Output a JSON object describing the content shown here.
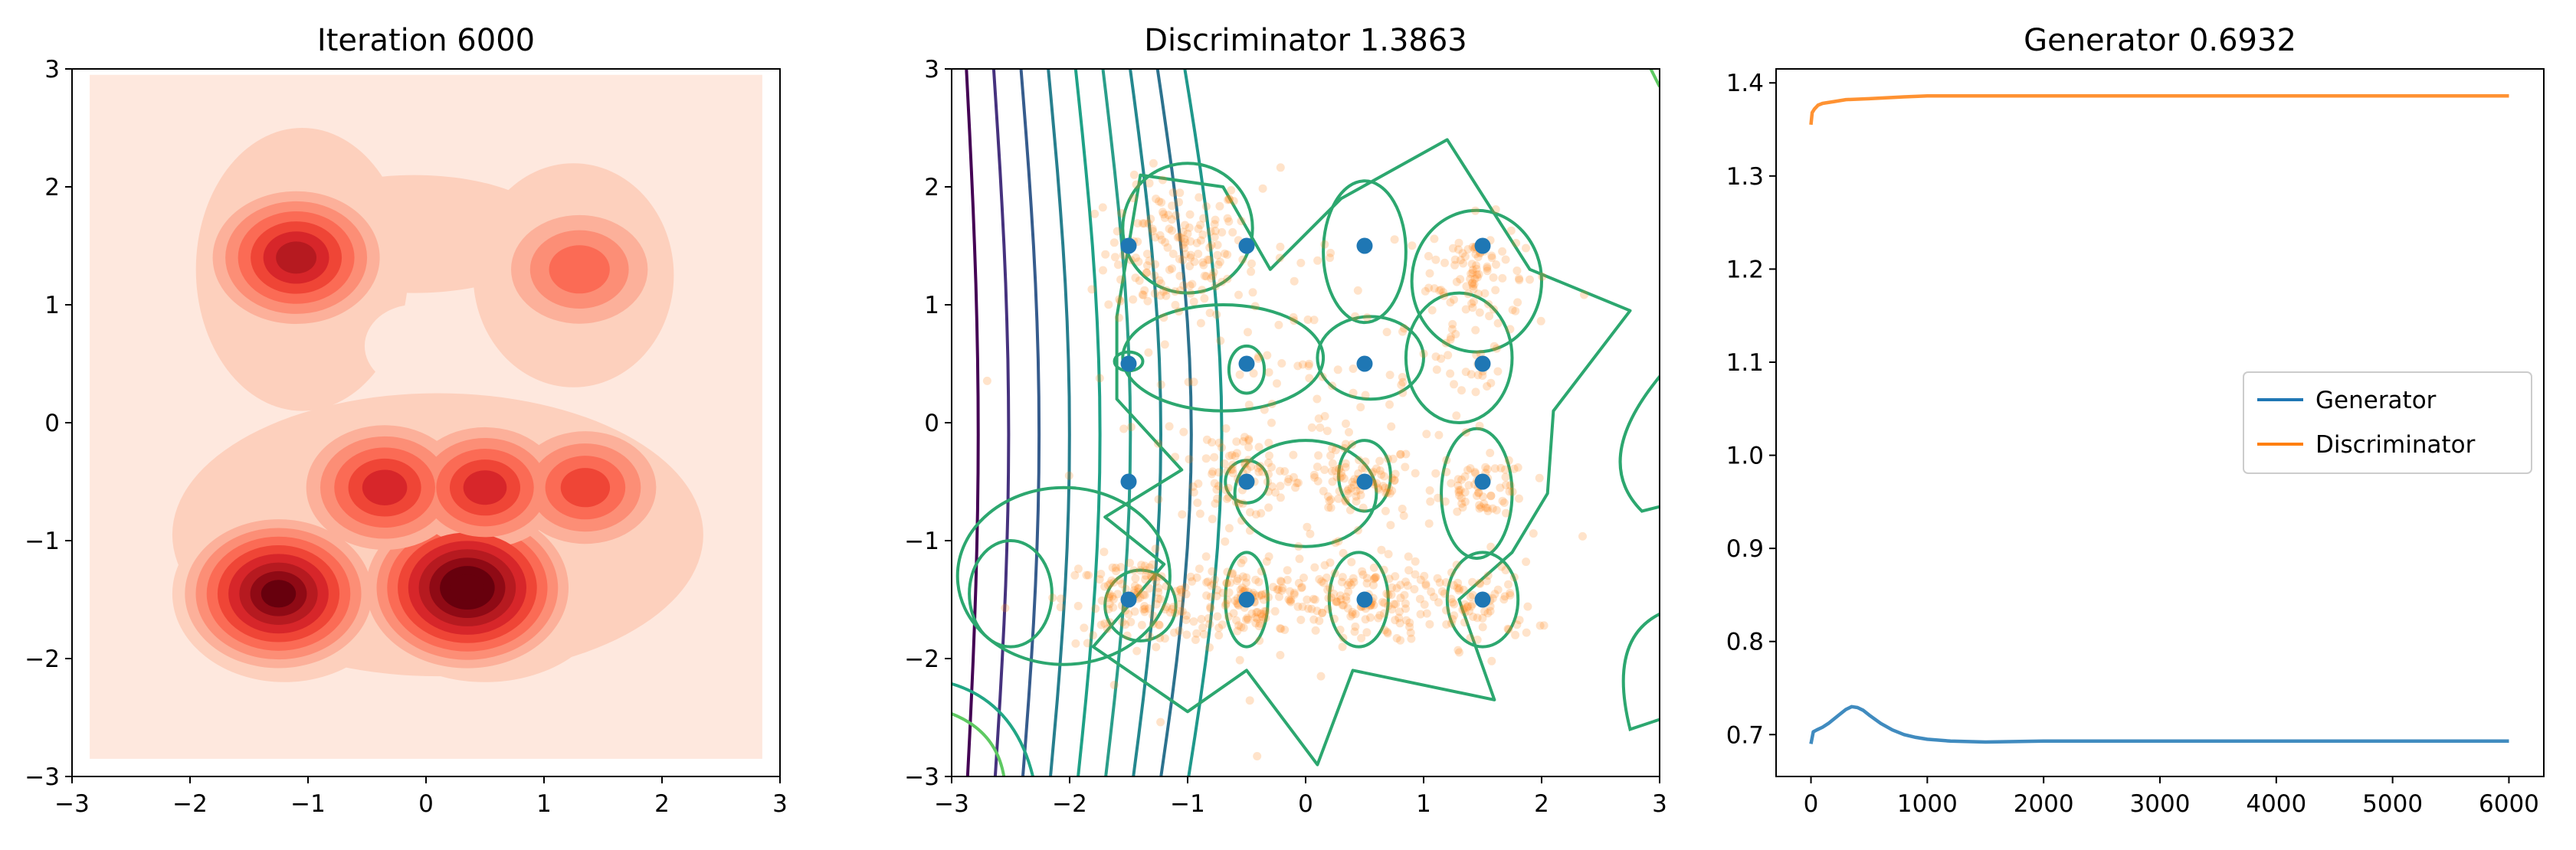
{
  "chart_data": [
    {
      "type": "heatmap",
      "title": "Iteration 6000",
      "xlim": [
        -3,
        3
      ],
      "ylim": [
        -3,
        3
      ],
      "x_ticks": [
        -3,
        -2,
        -1,
        0,
        1,
        2,
        3
      ],
      "y_ticks": [
        -3,
        -2,
        -1,
        0,
        1,
        2,
        3
      ],
      "grid": false,
      "colormap": "Reds",
      "density_peaks": [
        {
          "x": -1.1,
          "y": 1.4,
          "level": 0.65
        },
        {
          "x": 1.3,
          "y": 1.3,
          "level": 0.35
        },
        {
          "x": -0.35,
          "y": -0.55,
          "level": 0.55
        },
        {
          "x": 0.5,
          "y": -0.55,
          "level": 0.5
        },
        {
          "x": 1.35,
          "y": -0.55,
          "level": 0.4
        },
        {
          "x": -1.25,
          "y": -1.45,
          "level": 0.85
        },
        {
          "x": 0.35,
          "y": -1.4,
          "level": 1.0
        }
      ]
    },
    {
      "type": "scatter",
      "title": "Discriminator 1.3863",
      "xlim": [
        -3,
        3
      ],
      "ylim": [
        -3,
        3
      ],
      "x_ticks": [
        -3,
        -2,
        -1,
        0,
        1,
        2,
        3
      ],
      "y_ticks": [
        -3,
        -2,
        -1,
        0,
        1,
        2,
        3
      ],
      "grid": false,
      "contour_colormap": "viridis",
      "series": [
        {
          "role": "real",
          "color": "#1f77b4",
          "points": [
            [
              -1.5,
              1.5
            ],
            [
              -0.5,
              1.5
            ],
            [
              0.5,
              1.5
            ],
            [
              1.5,
              1.5
            ],
            [
              -1.5,
              0.5
            ],
            [
              -0.5,
              0.5
            ],
            [
              0.5,
              0.5
            ],
            [
              1.5,
              0.5
            ],
            [
              -1.5,
              -0.5
            ],
            [
              -0.5,
              -0.5
            ],
            [
              0.5,
              -0.5
            ],
            [
              1.5,
              -0.5
            ],
            [
              -1.5,
              -1.5
            ],
            [
              -0.5,
              -1.5
            ],
            [
              0.5,
              -1.5
            ],
            [
              1.5,
              -1.5
            ]
          ]
        },
        {
          "role": "generated",
          "color": "#ff7f0e",
          "clusters": [
            {
              "x": -1.1,
              "y": 1.45,
              "sx": 0.3,
              "sy": 0.3,
              "n": 150
            },
            {
              "x": 1.45,
              "y": 1.3,
              "sx": 0.2,
              "sy": 0.22,
              "n": 80
            },
            {
              "x": 1.4,
              "y": 0.7,
              "sx": 0.2,
              "sy": 0.3,
              "n": 40
            },
            {
              "x": -0.55,
              "y": -0.5,
              "sx": 0.25,
              "sy": 0.15,
              "n": 70
            },
            {
              "x": 0.45,
              "y": -0.5,
              "sx": 0.25,
              "sy": 0.15,
              "n": 80
            },
            {
              "x": 1.5,
              "y": -0.55,
              "sx": 0.2,
              "sy": 0.12,
              "n": 70
            },
            {
              "x": -1.45,
              "y": -1.5,
              "sx": 0.3,
              "sy": 0.18,
              "n": 120
            },
            {
              "x": -0.5,
              "y": -1.5,
              "sx": 0.3,
              "sy": 0.18,
              "n": 130
            },
            {
              "x": 0.45,
              "y": -1.5,
              "sx": 0.3,
              "sy": 0.18,
              "n": 130
            },
            {
              "x": 1.45,
              "y": -1.55,
              "sx": 0.25,
              "sy": 0.18,
              "n": 80
            },
            {
              "x": 0.0,
              "y": 0.0,
              "sx": 0.9,
              "sy": 0.9,
              "n": 180
            }
          ]
        }
      ]
    },
    {
      "type": "line",
      "title": "Generator 0.6932",
      "xlim": [
        -300,
        6300
      ],
      "ylim": [
        0.655,
        1.415
      ],
      "x_ticks": [
        0,
        1000,
        2000,
        3000,
        4000,
        5000,
        6000
      ],
      "y_ticks": [
        0.7,
        0.8,
        0.9,
        1.0,
        1.1,
        1.2,
        1.3,
        1.4
      ],
      "grid": false,
      "legend_position": "center-right",
      "series": [
        {
          "name": "Generator",
          "color": "#1f77b4",
          "x": [
            0,
            20,
            50,
            100,
            150,
            200,
            250,
            300,
            350,
            400,
            450,
            500,
            600,
            700,
            800,
            900,
            1000,
            1200,
            1500,
            2000,
            3000,
            4000,
            5000,
            6000
          ],
          "y": [
            0.69,
            0.703,
            0.705,
            0.708,
            0.712,
            0.717,
            0.722,
            0.727,
            0.73,
            0.729,
            0.726,
            0.721,
            0.712,
            0.705,
            0.7,
            0.697,
            0.695,
            0.693,
            0.692,
            0.693,
            0.693,
            0.693,
            0.693,
            0.693
          ]
        },
        {
          "name": "Discriminator",
          "color": "#ff7f0e",
          "x": [
            0,
            10,
            30,
            60,
            100,
            200,
            300,
            500,
            800,
            1000,
            2000,
            3000,
            4000,
            5000,
            6000
          ],
          "y": [
            1.355,
            1.368,
            1.372,
            1.376,
            1.378,
            1.38,
            1.382,
            1.383,
            1.385,
            1.386,
            1.386,
            1.386,
            1.386,
            1.386,
            1.386
          ]
        }
      ]
    }
  ]
}
